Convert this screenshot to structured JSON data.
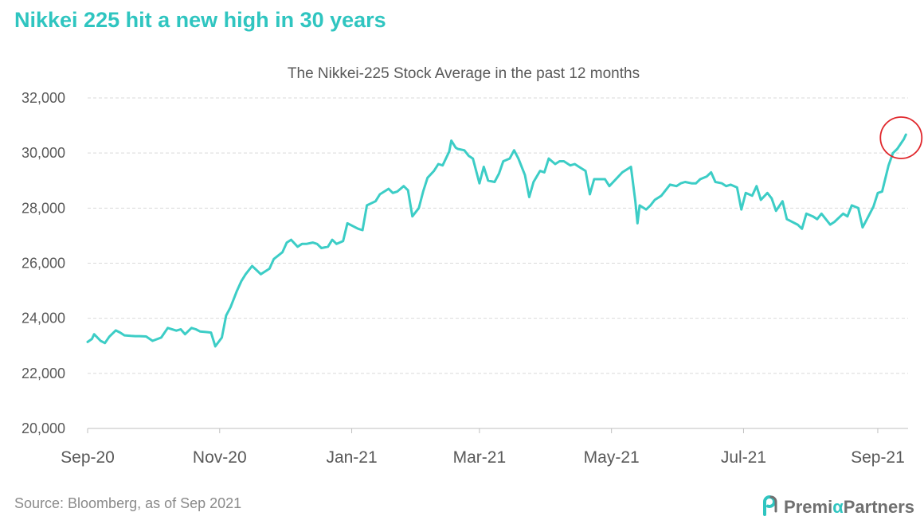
{
  "headline": "Nikkei 225 hit a new high in 30 years",
  "source": "Source: Bloomberg, as of Sep 2021",
  "brand": {
    "text_start": "Premi",
    "alpha": "α",
    "text_end": " Partners",
    "icon": "premia-logo-icon"
  },
  "colors": {
    "line": "#3ccdc6",
    "headline": "#2fc5c0",
    "highlight": "#e0262b",
    "grid": "#d9d9d9",
    "axis_text": "#595959"
  },
  "chart_data": {
    "type": "line",
    "title": "The Nikkei-225 Stock Average in the past 12 months",
    "xlabel": "",
    "ylabel": "",
    "ylim": [
      20000,
      32000
    ],
    "yticks": [
      20000,
      22000,
      24000,
      26000,
      28000,
      30000,
      32000
    ],
    "ytick_labels": [
      "20,000",
      "22,000",
      "24,000",
      "26,000",
      "28,000",
      "30,000",
      "32,000"
    ],
    "xlim": [
      "2020-09-01",
      "2021-09-15"
    ],
    "xticks": [
      "2020-09-01",
      "2020-11-01",
      "2021-01-01",
      "2021-03-01",
      "2021-05-01",
      "2021-07-01",
      "2021-09-01"
    ],
    "xtick_labels": [
      "Sep-20",
      "Nov-20",
      "Jan-21",
      "Mar-21",
      "May-21",
      "Jul-21",
      "Sep-21"
    ],
    "grid": "horizontal",
    "legend": "none",
    "highlight": {
      "label": "",
      "date": "2021-09-14",
      "value": 30670
    },
    "series": [
      {
        "dates": [
          "2020-09-01",
          "2020-09-03",
          "2020-09-04",
          "2020-09-07",
          "2020-09-09",
          "2020-09-11",
          "2020-09-14",
          "2020-09-16",
          "2020-09-18",
          "2020-09-21",
          "2020-09-23",
          "2020-09-25",
          "2020-09-28",
          "2020-10-01",
          "2020-10-05",
          "2020-10-08",
          "2020-10-12",
          "2020-10-14",
          "2020-10-16",
          "2020-10-19",
          "2020-10-21",
          "2020-10-23",
          "2020-10-26",
          "2020-10-28",
          "2020-10-30",
          "2020-11-02",
          "2020-11-04",
          "2020-11-06",
          "2020-11-09",
          "2020-11-11",
          "2020-11-13",
          "2020-11-16",
          "2020-11-18",
          "2020-11-20",
          "2020-11-24",
          "2020-11-26",
          "2020-11-30",
          "2020-12-02",
          "2020-12-04",
          "2020-12-07",
          "2020-12-09",
          "2020-12-11",
          "2020-12-14",
          "2020-12-16",
          "2020-12-18",
          "2020-12-21",
          "2020-12-23",
          "2020-12-25",
          "2020-12-28",
          "2020-12-30",
          "2021-01-04",
          "2021-01-06",
          "2021-01-08",
          "2021-01-12",
          "2021-01-14",
          "2021-01-18",
          "2021-01-20",
          "2021-01-22",
          "2021-01-25",
          "2021-01-27",
          "2021-01-29",
          "2021-02-01",
          "2021-02-03",
          "2021-02-05",
          "2021-02-08",
          "2021-02-10",
          "2021-02-12",
          "2021-02-15",
          "2021-02-16",
          "2021-02-18",
          "2021-02-19",
          "2021-02-22",
          "2021-02-24",
          "2021-02-26",
          "2021-03-01",
          "2021-03-03",
          "2021-03-05",
          "2021-03-08",
          "2021-03-10",
          "2021-03-12",
          "2021-03-15",
          "2021-03-17",
          "2021-03-19",
          "2021-03-22",
          "2021-03-24",
          "2021-03-26",
          "2021-03-29",
          "2021-03-31",
          "2021-04-02",
          "2021-04-05",
          "2021-04-07",
          "2021-04-09",
          "2021-04-12",
          "2021-04-14",
          "2021-04-16",
          "2021-04-19",
          "2021-04-21",
          "2021-04-23",
          "2021-04-26",
          "2021-04-28",
          "2021-04-30",
          "2021-05-06",
          "2021-05-10",
          "2021-05-12",
          "2021-05-13",
          "2021-05-14",
          "2021-05-17",
          "2021-05-19",
          "2021-05-21",
          "2021-05-24",
          "2021-05-26",
          "2021-05-28",
          "2021-05-31",
          "2021-06-02",
          "2021-06-04",
          "2021-06-07",
          "2021-06-09",
          "2021-06-11",
          "2021-06-14",
          "2021-06-16",
          "2021-06-18",
          "2021-06-21",
          "2021-06-23",
          "2021-06-25",
          "2021-06-28",
          "2021-06-30",
          "2021-07-02",
          "2021-07-05",
          "2021-07-07",
          "2021-07-09",
          "2021-07-12",
          "2021-07-14",
          "2021-07-16",
          "2021-07-19",
          "2021-07-21",
          "2021-07-26",
          "2021-07-28",
          "2021-07-30",
          "2021-08-02",
          "2021-08-04",
          "2021-08-06",
          "2021-08-10",
          "2021-08-12",
          "2021-08-16",
          "2021-08-18",
          "2021-08-20",
          "2021-08-23",
          "2021-08-25",
          "2021-08-27",
          "2021-08-30",
          "2021-09-01",
          "2021-09-03",
          "2021-09-06",
          "2021-09-08",
          "2021-09-10",
          "2021-09-13",
          "2021-09-14"
        ],
        "values": [
          23140,
          23250,
          23420,
          23180,
          23100,
          23330,
          23560,
          23480,
          23380,
          23360,
          23350,
          23350,
          23340,
          23180,
          23300,
          23650,
          23550,
          23600,
          23420,
          23650,
          23600,
          23520,
          23500,
          23480,
          22980,
          23300,
          24100,
          24400,
          25000,
          25350,
          25600,
          25900,
          25750,
          25600,
          25800,
          26150,
          26400,
          26750,
          26850,
          26600,
          26700,
          26700,
          26750,
          26700,
          26550,
          26600,
          26850,
          26700,
          26800,
          27450,
          27250,
          27200,
          28100,
          28250,
          28500,
          28700,
          28550,
          28600,
          28800,
          28650,
          27700,
          28000,
          28600,
          29100,
          29350,
          29600,
          29550,
          30050,
          30450,
          30200,
          30150,
          30100,
          29900,
          29800,
          28900,
          29500,
          29000,
          28950,
          29250,
          29700,
          29800,
          30100,
          29800,
          29200,
          28400,
          28950,
          29350,
          29300,
          29800,
          29600,
          29700,
          29700,
          29550,
          29600,
          29500,
          29350,
          28500,
          29050,
          29050,
          29050,
          28800,
          29300,
          29500,
          28250,
          27450,
          28100,
          27950,
          28100,
          28300,
          28450,
          28650,
          28850,
          28800,
          28900,
          28950,
          28900,
          28900,
          29050,
          29150,
          29300,
          28950,
          28900,
          28800,
          28850,
          28750,
          27950,
          28550,
          28450,
          28800,
          28300,
          28550,
          28350,
          27900,
          28250,
          27600,
          27400,
          27250,
          27800,
          27700,
          27600,
          27800,
          27400,
          27500,
          27800,
          27700,
          28100,
          28000,
          27300,
          27600,
          28050,
          28550,
          28600,
          29550,
          30000,
          30150,
          30500,
          30670
        ]
      }
    ]
  }
}
